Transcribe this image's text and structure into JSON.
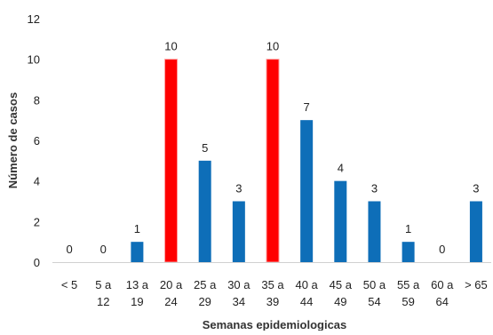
{
  "chart_data": {
    "type": "bar",
    "xlabel": "Semanas epidemiologicas",
    "ylabel": "Número de casos",
    "ylim": [
      0,
      12
    ],
    "yticks": [
      0,
      2,
      4,
      6,
      8,
      10,
      12
    ],
    "grid": false,
    "categories": [
      [
        "< 5"
      ],
      [
        "5 a",
        "12"
      ],
      [
        "13 a",
        "19"
      ],
      [
        "20 a",
        "24"
      ],
      [
        "25 a",
        "29"
      ],
      [
        "30 a",
        "34"
      ],
      [
        "35 a",
        "39"
      ],
      [
        "40 a",
        "44"
      ],
      [
        "45 a",
        "49"
      ],
      [
        "50 a",
        "54"
      ],
      [
        "55 a",
        "59"
      ],
      [
        "60 a",
        "64"
      ],
      [
        "> 65"
      ]
    ],
    "values": [
      0,
      0,
      1,
      10,
      5,
      3,
      10,
      7,
      4,
      3,
      1,
      0,
      3
    ],
    "colors": {
      "default": "#0E6EB8",
      "highlight": "#FF0000"
    },
    "highlighted_indices": [
      3,
      6
    ]
  }
}
